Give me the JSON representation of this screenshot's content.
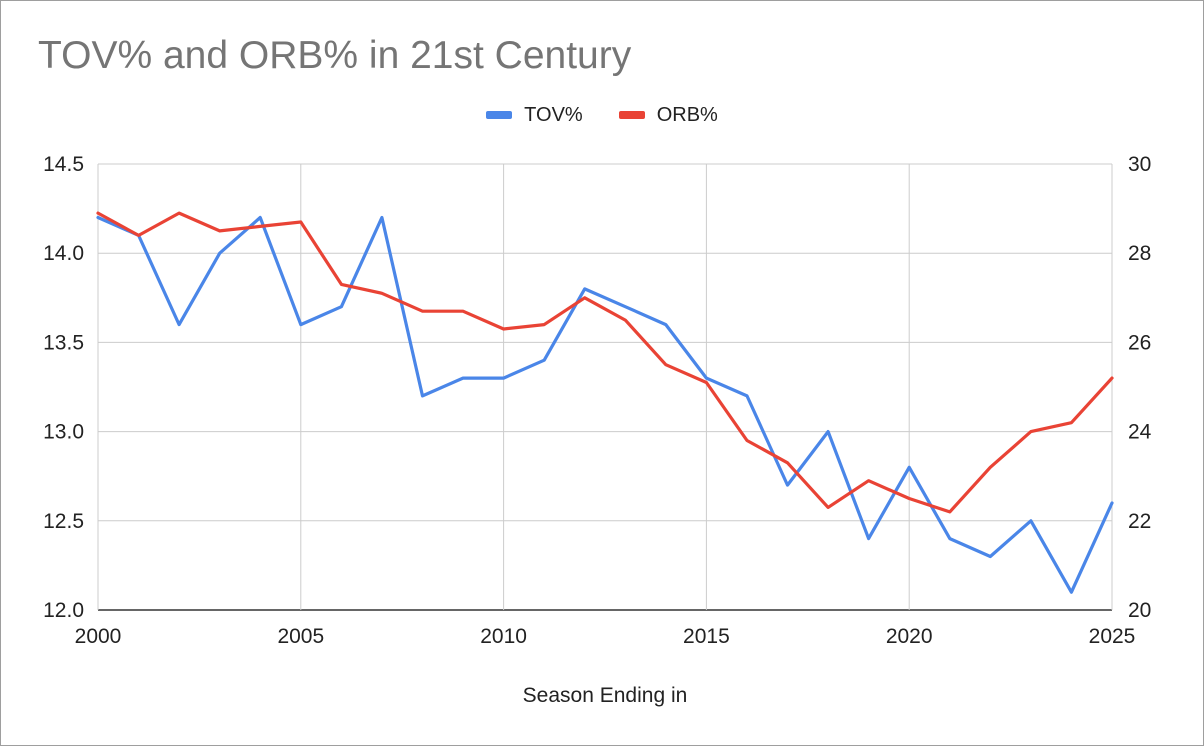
{
  "chart_data": {
    "type": "line",
    "title": "TOV% and ORB% in 21st Century",
    "xlabel": "Season Ending in",
    "ylabel_left": "",
    "ylabel_right": "",
    "x": [
      2000,
      2001,
      2002,
      2003,
      2004,
      2005,
      2006,
      2007,
      2008,
      2009,
      2010,
      2011,
      2012,
      2013,
      2014,
      2015,
      2016,
      2017,
      2018,
      2019,
      2020,
      2021,
      2022,
      2023,
      2024,
      2025
    ],
    "xlim": [
      2000,
      2025
    ],
    "x_ticks": [
      2000,
      2005,
      2010,
      2015,
      2020,
      2025
    ],
    "ylim_left": [
      12.0,
      14.5
    ],
    "y_ticks_left": [
      "12.0",
      "12.5",
      "13.0",
      "13.5",
      "14.0",
      "14.5"
    ],
    "ylim_right": [
      20,
      30
    ],
    "y_ticks_right": [
      "20",
      "22",
      "24",
      "26",
      "28",
      "30"
    ],
    "grid": true,
    "legend_position": "top",
    "series": [
      {
        "name": "TOV%",
        "axis": "left",
        "color": "#4a86e8",
        "values": [
          14.2,
          14.1,
          13.6,
          14.0,
          14.2,
          13.6,
          13.7,
          14.2,
          13.2,
          13.3,
          13.3,
          13.4,
          13.8,
          13.7,
          13.6,
          13.3,
          13.2,
          12.7,
          13.0,
          12.4,
          12.8,
          12.4,
          12.3,
          12.5,
          12.1,
          12.6
        ]
      },
      {
        "name": "ORB%",
        "axis": "right",
        "color": "#e94335",
        "values": [
          28.9,
          28.4,
          28.9,
          28.5,
          28.6,
          28.7,
          27.3,
          27.1,
          26.7,
          26.7,
          26.3,
          26.4,
          27.0,
          26.5,
          25.5,
          25.1,
          23.8,
          23.3,
          22.3,
          22.9,
          22.5,
          22.2,
          23.2,
          24.0,
          24.2,
          25.2
        ]
      }
    ]
  }
}
